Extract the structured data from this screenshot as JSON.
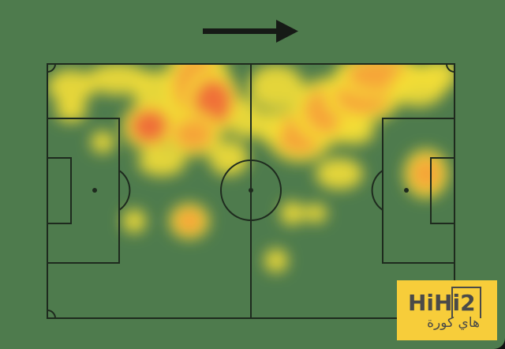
{
  "graphic": {
    "type": "player-heatmap",
    "attack_direction": "right",
    "icons": [
      "direction-arrow-icon"
    ],
    "colors": {
      "pitch": "#4e7b4d",
      "lines": "#1e2a1e",
      "heat_low": "#f7e23a",
      "heat_high": "#f0643a"
    }
  },
  "logo": {
    "brand": "HiHi2",
    "arabic": "هاي كورة",
    "color": "#f7cd3a"
  }
}
